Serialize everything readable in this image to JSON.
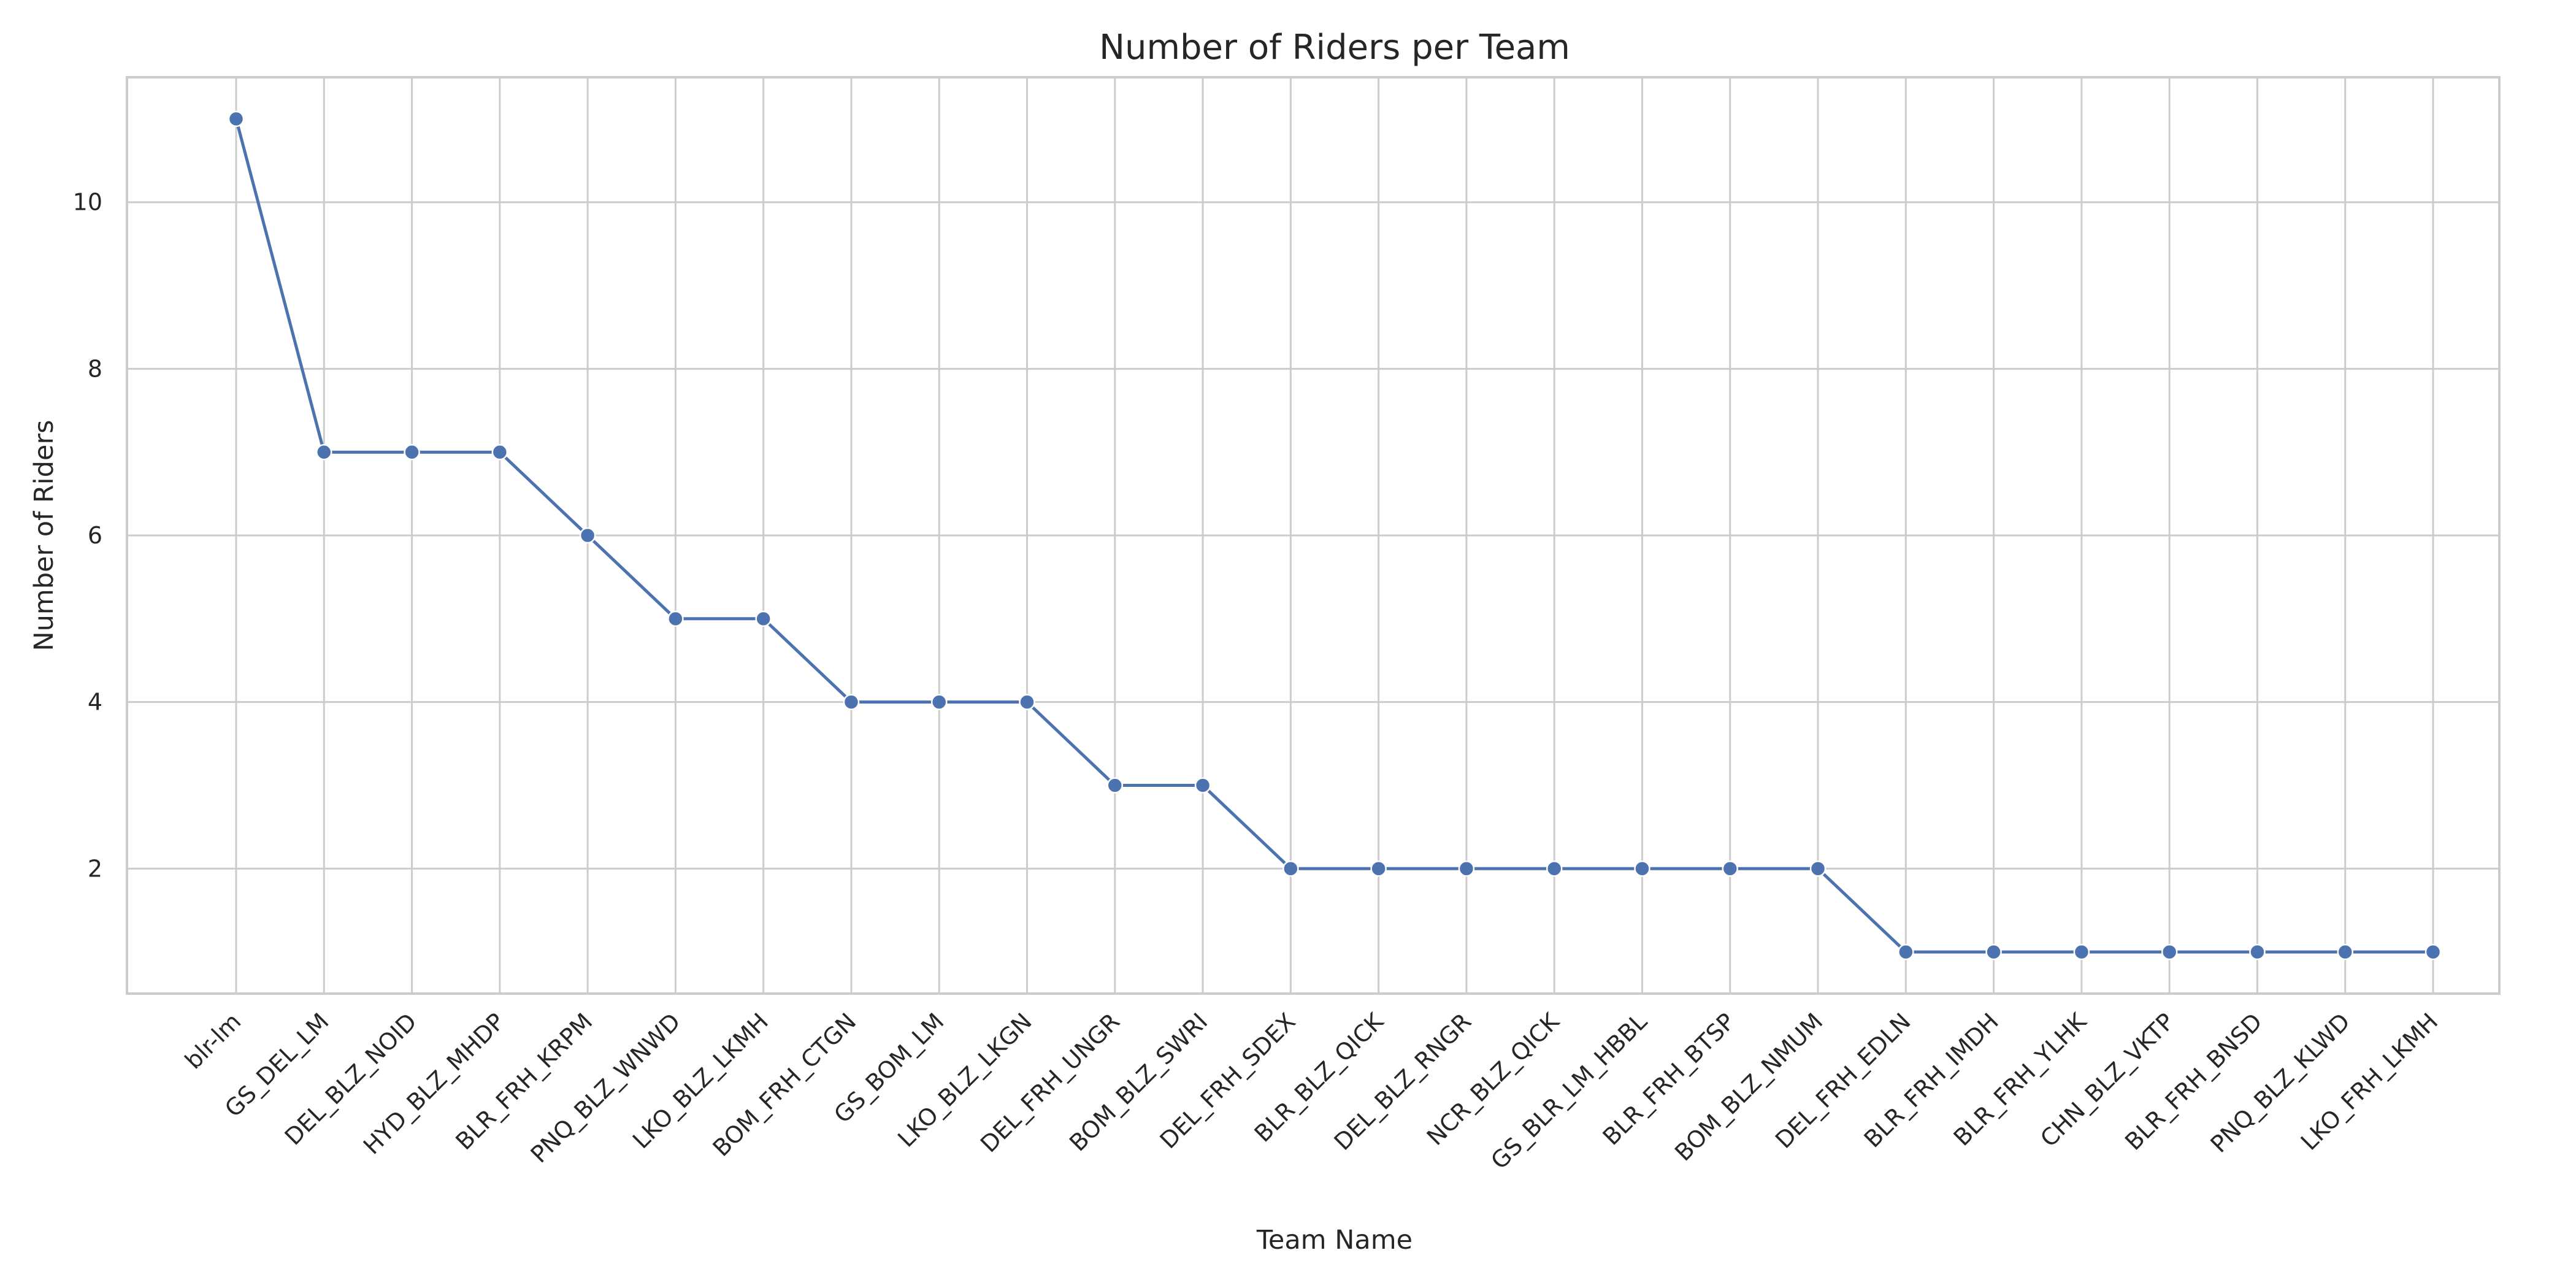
{
  "chart_data": {
    "type": "line",
    "title": "Number of Riders per Team",
    "xlabel": "Team Name",
    "ylabel": "Number of Riders",
    "categories": [
      "blr-lm",
      "GS_DEL_LM",
      "DEL_BLZ_NOID",
      "HYD_BLZ_MHDP",
      "BLR_FRH_KRPM",
      "PNQ_BLZ_WNWD",
      "LKO_BLZ_LKMH",
      "BOM_FRH_CTGN",
      "GS_BOM_LM",
      "LKO_BLZ_LKGN",
      "DEL_FRH_UNGR",
      "BOM_BLZ_SWRI",
      "DEL_FRH_SDEX",
      "BLR_BLZ_QICK",
      "DEL_BLZ_RNGR",
      "NCR_BLZ_QICK",
      "GS_BLR_LM_HBBL",
      "BLR_FRH_BTSP",
      "BOM_BLZ_NMUM",
      "DEL_FRH_EDLN",
      "BLR_FRH_IMDH",
      "BLR_FRH_YLHK",
      "CHN_BLZ_VKTP",
      "BLR_FRH_BNSD",
      "PNQ_BLZ_KLWD",
      "LKO_FRH_LKMH"
    ],
    "series": [
      {
        "color": "#4c72b0",
        "values": [
          11,
          7,
          7,
          7,
          6,
          5,
          5,
          4,
          4,
          4,
          3,
          3,
          2,
          2,
          2,
          2,
          2,
          2,
          2,
          1,
          1,
          1,
          1,
          1,
          1,
          1
        ]
      }
    ],
    "ylim": [
      0.5,
      11.5
    ],
    "yticks": [
      2,
      4,
      6,
      8,
      10
    ],
    "grid": true,
    "style": "seaborn-whitegrid"
  }
}
